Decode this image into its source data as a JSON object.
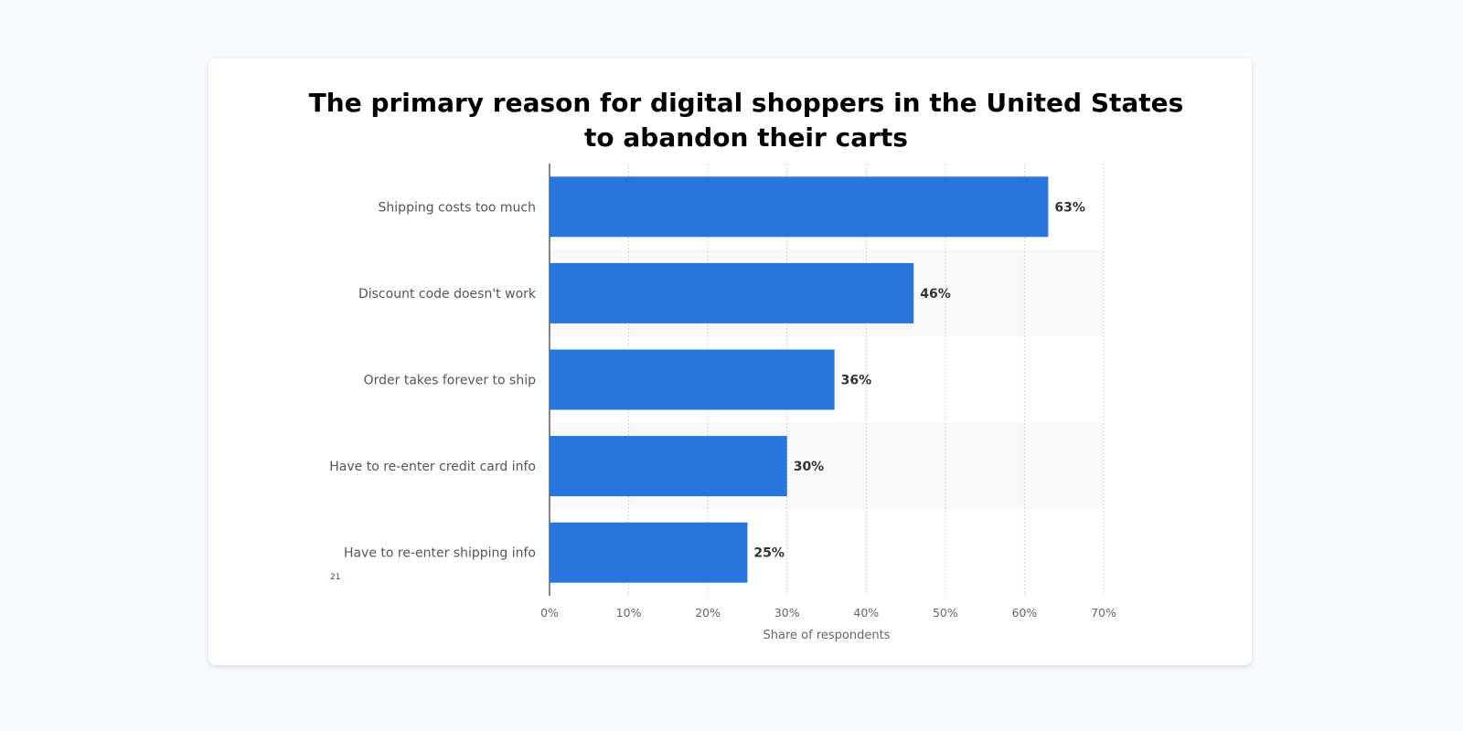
{
  "chart_data": {
    "type": "bar",
    "orientation": "horizontal",
    "title": "The primary reason for digital shoppers in the United States\nto abandon their carts",
    "categories": [
      "Shipping costs too much",
      "Discount code doesn't work",
      "Order takes forever to ship",
      "Have to re-enter credit card info",
      "Have to re-enter shipping info"
    ],
    "values": [
      63,
      46,
      36,
      30,
      25
    ],
    "value_labels": [
      "63%",
      "46%",
      "36%",
      "30%",
      "25%"
    ],
    "xlabel": "Share of respondents",
    "ylabel": "",
    "xlim": [
      0,
      70
    ],
    "ticks": [
      0,
      10,
      20,
      30,
      40,
      50,
      60,
      70
    ],
    "tick_labels": [
      "0%",
      "10%",
      "20%",
      "30%",
      "40%",
      "50%",
      "60%",
      "70%"
    ],
    "grid": true,
    "bar_color": "#2876dd",
    "band_color": "#f9f9f9",
    "note": "21"
  }
}
